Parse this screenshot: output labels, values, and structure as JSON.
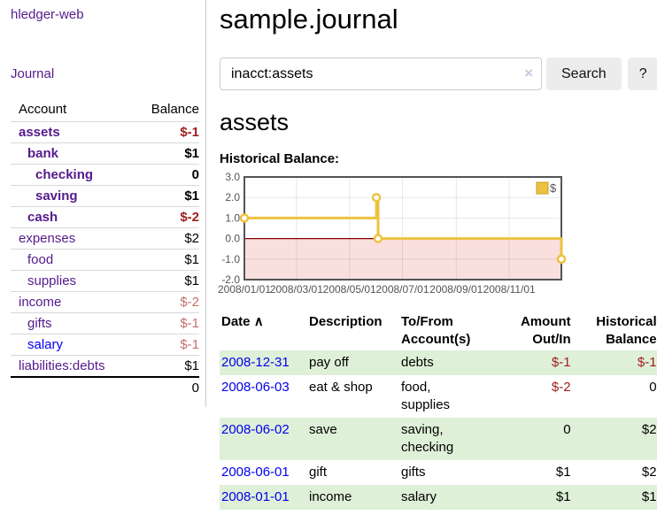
{
  "app": {
    "title": "hledger-web"
  },
  "sidebar": {
    "journal_link": "Journal",
    "accounts": {
      "account_header": "Account",
      "balance_header": "Balance",
      "rows": [
        {
          "name": "assets",
          "balance": "$-1",
          "level": 1,
          "bold": true,
          "balance_style": "neg",
          "link_style": "purple"
        },
        {
          "name": "bank",
          "balance": "$1",
          "level": 2,
          "bold": true,
          "balance_style": "",
          "link_style": "purple"
        },
        {
          "name": "checking",
          "balance": "0",
          "level": 3,
          "bold": true,
          "balance_style": "",
          "link_style": "purple"
        },
        {
          "name": "saving",
          "balance": "$1",
          "level": 3,
          "bold": true,
          "balance_style": "",
          "link_style": "purple"
        },
        {
          "name": "cash",
          "balance": "$-2",
          "level": 2,
          "bold": true,
          "balance_style": "neg",
          "link_style": "purple"
        },
        {
          "name": "expenses",
          "balance": "$2",
          "level": 1,
          "bold": false,
          "balance_style": "",
          "link_style": "purple"
        },
        {
          "name": "food",
          "balance": "$1",
          "level": 2,
          "bold": false,
          "balance_style": "",
          "link_style": "purple"
        },
        {
          "name": "supplies",
          "balance": "$1",
          "level": 2,
          "bold": false,
          "balance_style": "",
          "link_style": "purple"
        },
        {
          "name": "income",
          "balance": "$-2",
          "level": 1,
          "bold": false,
          "balance_style": "neg-soft",
          "link_style": "purple"
        },
        {
          "name": "gifts",
          "balance": "$-1",
          "level": 2,
          "bold": false,
          "balance_style": "neg-soft",
          "link_style": "purple"
        },
        {
          "name": "salary",
          "balance": "$-1",
          "level": 2,
          "bold": false,
          "balance_style": "neg-soft",
          "link_style": "blue"
        },
        {
          "name": "liabilities:debts",
          "balance": "$1",
          "level": 1,
          "bold": false,
          "balance_style": "",
          "link_style": "purple"
        }
      ],
      "total": "0"
    }
  },
  "main": {
    "title": "sample.journal",
    "search": {
      "value": "inacct:assets",
      "clear_icon": "×",
      "button_label": "Search",
      "help_label": "?"
    },
    "account_heading": "assets",
    "chart_label": "Historical Balance:"
  },
  "chart_data": {
    "type": "line",
    "title": "Historical Balance",
    "steps": true,
    "series": [
      {
        "name": "$",
        "color": "#EDC240",
        "points": [
          [
            "2008-01-01",
            1
          ],
          [
            "2008-06-01",
            2
          ],
          [
            "2008-06-03",
            0
          ],
          [
            "2008-12-31",
            -1
          ]
        ]
      }
    ],
    "xrange": [
      "2008-01-01",
      "2008-12-31"
    ],
    "ylim": [
      -2,
      3
    ],
    "yticks": [
      "3.0",
      "2.0",
      "1.0",
      "0.0",
      "-1.0",
      "-2.0"
    ],
    "xticks": [
      "2008/01/01",
      "2008/03/01",
      "2008/05/01",
      "2008/07/01",
      "2008/09/01",
      "2008/11/01"
    ],
    "grid": true,
    "legend": {
      "label": "$",
      "position": "top-right"
    },
    "negative_region_color": "#fadfdf",
    "zero_line_color": "#8b0000",
    "border_color": "#545454",
    "tick_text_color": "#545454"
  },
  "register": {
    "headers": {
      "date": "Date",
      "sort_icon": "∧",
      "description": "Description",
      "accounts": "To/From Account(s)",
      "amount": "Amount Out/In",
      "balance": "Historical Balance"
    },
    "rows": [
      {
        "date": "2008-12-31",
        "description": "pay off",
        "accounts": "debts",
        "amount": "$-1",
        "balance": "$-1",
        "amount_neg": true,
        "balance_neg": true
      },
      {
        "date": "2008-06-03",
        "description": "eat & shop",
        "accounts": "food, supplies",
        "amount": "$-2",
        "balance": "0",
        "amount_neg": true,
        "balance_neg": false
      },
      {
        "date": "2008-06-02",
        "description": "save",
        "accounts": "saving, checking",
        "amount": "0",
        "balance": "$2",
        "amount_neg": false,
        "balance_neg": false
      },
      {
        "date": "2008-06-01",
        "description": "gift",
        "accounts": "gifts",
        "amount": "$1",
        "balance": "$2",
        "amount_neg": false,
        "balance_neg": false
      },
      {
        "date": "2008-01-01",
        "description": "income",
        "accounts": "salary",
        "amount": "$1",
        "balance": "$1",
        "amount_neg": false,
        "balance_neg": false
      }
    ]
  }
}
